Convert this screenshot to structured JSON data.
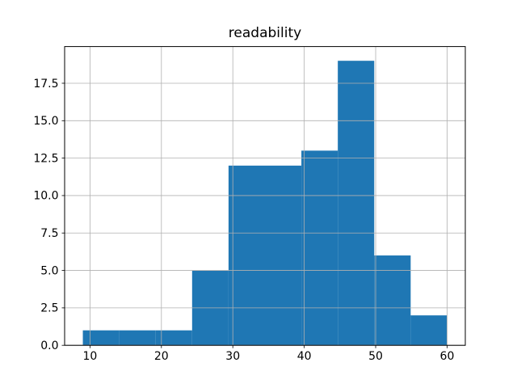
{
  "chart_data": {
    "type": "histogram",
    "title": "readability",
    "xlabel": "",
    "ylabel": "",
    "bin_edges": [
      9.0,
      14.1,
      19.2,
      24.3,
      29.4,
      34.5,
      39.6,
      44.7,
      49.8,
      54.9,
      60.0
    ],
    "counts": [
      1,
      1,
      1,
      5,
      12,
      12,
      13,
      19,
      6,
      2
    ],
    "xticks": [
      10,
      20,
      30,
      40,
      50,
      60
    ],
    "xtick_labels": [
      "10",
      "20",
      "30",
      "40",
      "50",
      "60"
    ],
    "yticks": [
      0,
      2.5,
      5,
      7.5,
      10,
      12.5,
      15,
      17.5
    ],
    "ytick_labels": [
      "0.0",
      "2.5",
      "5.0",
      "7.5",
      "10.0",
      "12.5",
      "15.0",
      "17.5"
    ],
    "xlim": [
      6.45,
      62.55
    ],
    "ylim": [
      0,
      19.95
    ],
    "grid": true,
    "grid_above_bars": true,
    "legend_position": "none",
    "bar_color": "#1f77b4",
    "grid_color": "#b0b0b0",
    "spine_color": "#000000",
    "text_color": "#000000",
    "background_color": "#ffffff"
  }
}
